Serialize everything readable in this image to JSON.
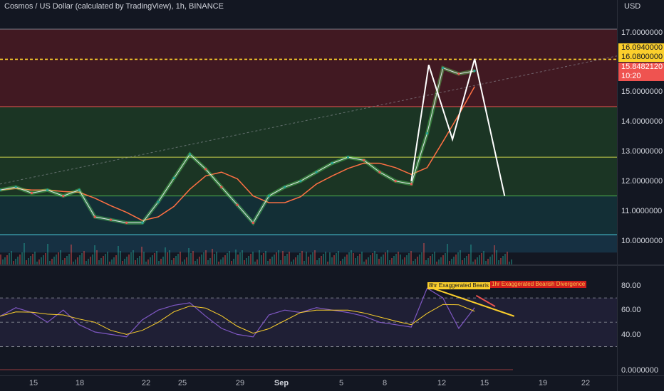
{
  "header": {
    "title": "Cosmos / US Dollar (calculated by TradingView), 1h, BINANCE",
    "currency": "USD"
  },
  "price_axis": {
    "ticks": [
      "17.0000000",
      "15.0000000",
      "14.0000000",
      "13.0000000",
      "12.0000000",
      "11.0000000",
      "10.0000000"
    ],
    "tags": {
      "yellow_1": "16.0940000",
      "yellow_2": "16.0800000",
      "current_price": "15.8482120",
      "countdown": "10:20"
    }
  },
  "rsi_axis": {
    "ticks": [
      "80.00",
      "60.00",
      "40.00"
    ],
    "macd_tick": "0.0000000"
  },
  "time_axis": [
    "15",
    "18",
    "22",
    "25",
    "29",
    "Sep",
    "5",
    "8",
    "12",
    "15",
    "19",
    "22"
  ],
  "annotations": {
    "note_8hr": "8hr Exaggerated Bearis",
    "note_1hr": "1hr Exaggerated Bearish Divergence"
  },
  "colors": {
    "background": "#131722",
    "zone_red": "#4a1a22",
    "zone_green": "#1d3b24",
    "zone_teal": "#14343a",
    "zone_blue": "#173548",
    "bull": "#26a69a",
    "bear": "#ef5350",
    "yellow": "#fbcf2c",
    "rsi_line": "#7e57c2",
    "pattern_line": "#ffffff"
  },
  "chart_data": [
    {
      "type": "line",
      "title": "Cosmos / US Dollar (calculated by TradingView), 1h, BINANCE",
      "y_unit": "USD",
      "ylim": [
        9.6,
        17.6
      ],
      "x_ticks": [
        "15",
        "18",
        "22",
        "25",
        "29",
        "Sep",
        "5",
        "8",
        "12",
        "15",
        "19",
        "22"
      ],
      "series": [
        {
          "x": [
            13,
            14,
            15,
            16,
            17,
            18,
            19,
            20,
            21,
            22,
            23,
            24,
            25,
            26,
            27,
            28,
            29,
            30,
            31,
            32,
            33,
            34,
            35,
            36,
            37,
            38,
            39,
            40,
            41,
            42,
            43
          ],
          "values": [
            11.7,
            11.8,
            11.6,
            11.7,
            11.5,
            11.7,
            10.8,
            10.7,
            10.6,
            10.6,
            11.3,
            12.1,
            12.9,
            12.4,
            11.8,
            11.2,
            10.6,
            11.5,
            11.8,
            12.0,
            12.3,
            12.6,
            12.8,
            12.7,
            12.3,
            12.0,
            11.9,
            13.6,
            15.8,
            15.6,
            15.7
          ]
        }
      ],
      "horizontal_levels": [
        17.1,
        16.094,
        16.08,
        14.5,
        12.8,
        11.5,
        10.2
      ],
      "pattern_line": {
        "x": [
          39.0,
          40.1,
          41.6,
          43.0,
          44.9
        ],
        "values": [
          12.0,
          15.9,
          13.4,
          16.1,
          11.5
        ]
      },
      "zones": [
        {
          "from": 14.5,
          "to": 17.1,
          "color": "red"
        },
        {
          "from": 12.8,
          "to": 14.5,
          "color": "green"
        },
        {
          "from": 11.5,
          "to": 12.8,
          "color": "green"
        },
        {
          "from": 10.2,
          "to": 11.5,
          "color": "teal"
        },
        {
          "from": 9.6,
          "to": 10.2,
          "color": "blue"
        }
      ]
    },
    {
      "type": "line",
      "ylim": [
        26,
        92
      ],
      "x_ticks": [
        "15",
        "18",
        "22",
        "25",
        "29",
        "Sep",
        "5",
        "8",
        "12",
        "15",
        "19",
        "22"
      ],
      "levels": [
        70,
        50,
        30
      ],
      "series": [
        {
          "x": [
            13,
            14,
            15,
            16,
            17,
            18,
            19,
            20,
            21,
            22,
            23,
            24,
            25,
            26,
            27,
            28,
            29,
            30,
            31,
            32,
            33,
            34,
            35,
            36,
            37,
            38,
            39,
            40,
            41,
            42,
            43
          ],
          "values": [
            55,
            62,
            58,
            50,
            60,
            48,
            42,
            40,
            38,
            52,
            60,
            64,
            66,
            55,
            45,
            40,
            38,
            56,
            60,
            58,
            62,
            60,
            58,
            55,
            50,
            48,
            46,
            78,
            70,
            45,
            62
          ]
        }
      ],
      "divergence_lines": [
        {
          "x": [
            40.1,
            45.5
          ],
          "values": [
            79,
            55
          ]
        },
        {
          "x": [
            43.1,
            44.3
          ],
          "values": [
            72,
            63
          ]
        }
      ]
    }
  ]
}
